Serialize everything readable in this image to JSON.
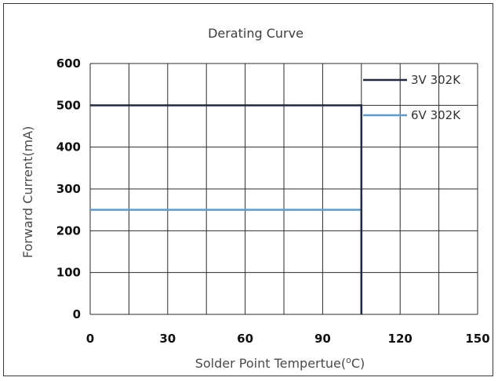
{
  "chart_data": {
    "type": "line",
    "title": "Derating Curve",
    "xlabel": "Solder Point Tempertue(",
    "xlabel_unit_sup": "o",
    "xlabel_unit": "C)",
    "ylabel": "Forward Current(mA)",
    "xlim": [
      0,
      150
    ],
    "ylim": [
      0,
      600
    ],
    "x_ticks": [
      0,
      30,
      60,
      90,
      120,
      150
    ],
    "y_ticks": [
      0,
      100,
      200,
      300,
      400,
      500,
      600
    ],
    "x_minor_step": 15,
    "grid": true,
    "legend_position": "top-right",
    "series": [
      {
        "name": "3V 302K",
        "color": "#1f2a44",
        "points": [
          [
            0,
            500
          ],
          [
            105,
            500
          ],
          [
            105,
            0
          ]
        ]
      },
      {
        "name": "6V 302K",
        "color": "#5b9bd5",
        "points": [
          [
            0,
            250
          ],
          [
            105,
            250
          ],
          [
            105,
            0
          ]
        ]
      }
    ]
  }
}
